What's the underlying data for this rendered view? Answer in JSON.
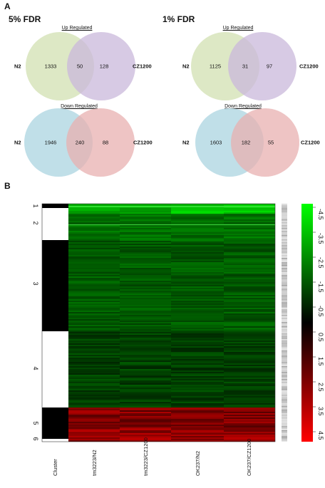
{
  "panel_a_label": "A",
  "panel_b_label": "B",
  "venn_sets": [
    {
      "fdr_title": "5% FDR",
      "up": {
        "title": "Up Regulated",
        "left_label": "N2",
        "right_label": "CZ1200",
        "left_only": "1333",
        "overlap": "50",
        "right_only": "128"
      },
      "down": {
        "title": "Down Regulated",
        "left_label": "N2",
        "right_label": "CZ1200",
        "left_only": "1946",
        "overlap": "240",
        "right_only": "88"
      }
    },
    {
      "fdr_title": "1% FDR",
      "up": {
        "title": "Up Regulated",
        "left_label": "N2",
        "right_label": "CZ1200",
        "left_only": "1125",
        "overlap": "31",
        "right_only": "97"
      },
      "down": {
        "title": "Down Regulated",
        "left_label": "N2",
        "right_label": "CZ1200",
        "left_only": "1603",
        "overlap": "182",
        "right_only": "55"
      }
    }
  ],
  "colors": {
    "up_left": "#d9e6bf",
    "up_right": "#c9b8db",
    "down_left": "#b9dce6",
    "down_right": "#e8b0b0",
    "heat_green": "#00ff00",
    "heat_black": "#000000",
    "heat_red": "#ff0000"
  },
  "heatmap": {
    "cluster_numbers": [
      "1",
      "2",
      "3",
      "4",
      "5",
      "6"
    ],
    "column_labels": [
      "Cluster",
      "tm3223/N2",
      "tm3223/CZ1200",
      "OK237/N2",
      "OK237/CZ1200"
    ],
    "legend_ticks": [
      "-4.5",
      "-3.5",
      "-2.5",
      "-1.5",
      "-0.5",
      "0.5",
      "1.5",
      "2.5",
      "3.5",
      "4.5"
    ]
  }
}
